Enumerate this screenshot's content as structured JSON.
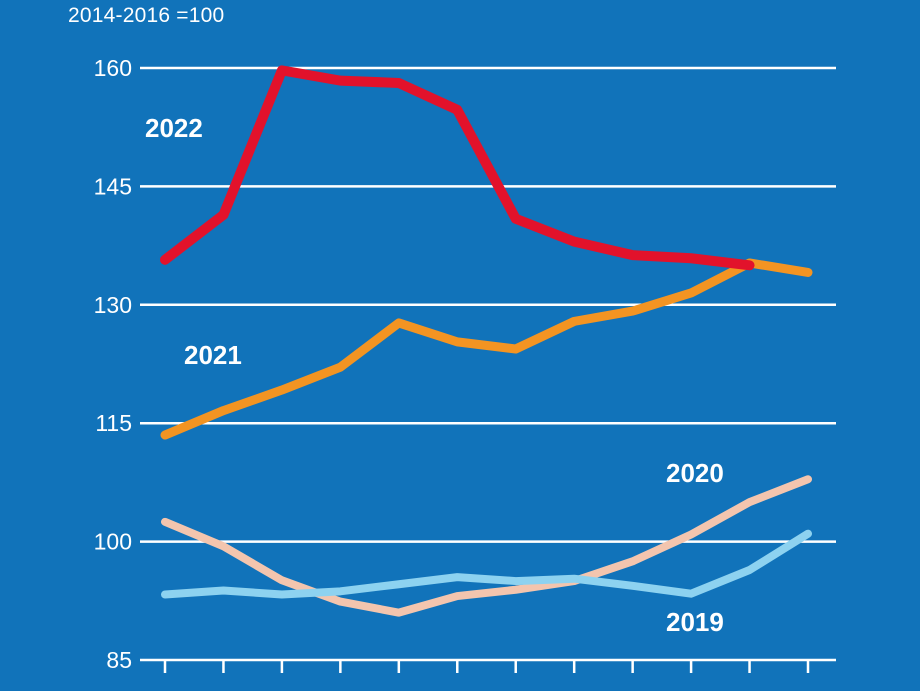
{
  "header": {
    "unit_label": "2014-2016 =100"
  },
  "colors": {
    "background": "#1173ba",
    "grid": "#ffffff",
    "text": "#ffffff",
    "s2022": "#e2122b",
    "s2021": "#f39422",
    "s2020": "#f3c5ae",
    "s2019": "#8dd2f0"
  },
  "chart_data": {
    "type": "line",
    "title": "",
    "xlabel": "",
    "ylabel": "2014-2016 =100",
    "x": [
      1,
      2,
      3,
      4,
      5,
      6,
      7,
      8,
      9,
      10,
      11,
      12
    ],
    "ylim": [
      85,
      160
    ],
    "yticks": [
      85,
      100,
      115,
      130,
      145,
      160
    ],
    "grid": "horizontal",
    "legend_position": "inline-labels",
    "series": [
      {
        "name": "2022",
        "color_key": "s2022",
        "stroke_width": 10,
        "values": [
          135.7,
          141.4,
          159.7,
          158.4,
          158.1,
          154.7,
          140.9,
          138.0,
          136.3,
          135.9,
          135.0
        ]
      },
      {
        "name": "2021",
        "color_key": "s2021",
        "stroke_width": 9,
        "values": [
          113.5,
          116.6,
          119.2,
          122.1,
          127.7,
          125.3,
          124.4,
          127.9,
          129.2,
          131.5,
          135.3,
          134.1
        ]
      },
      {
        "name": "2020",
        "color_key": "s2020",
        "stroke_width": 8,
        "values": [
          102.5,
          99.4,
          95.1,
          92.4,
          91.0,
          93.1,
          93.9,
          95.0,
          97.5,
          100.9,
          105.0,
          107.9
        ]
      },
      {
        "name": "2019",
        "color_key": "s2019",
        "stroke_width": 8,
        "values": [
          93.3,
          93.8,
          93.3,
          93.7,
          94.6,
          95.5,
          95.0,
          95.3,
          94.4,
          93.4,
          96.4,
          101.0
        ]
      }
    ]
  }
}
